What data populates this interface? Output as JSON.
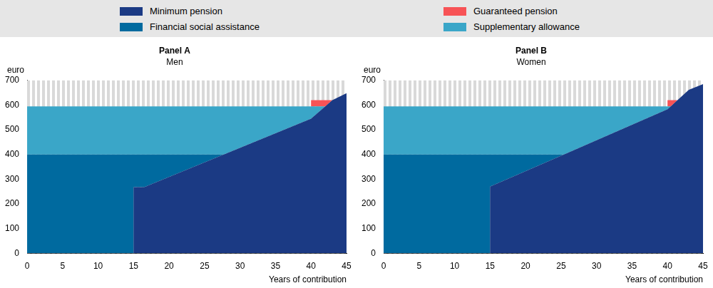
{
  "chart_data": [
    {
      "type": "area",
      "title": "Panel A",
      "subtitle": "Men",
      "x_label": "Years of contribution",
      "y_label": "euro",
      "x": [
        0,
        15,
        15,
        16.5,
        27.7,
        40,
        40,
        42,
        43,
        45
      ],
      "series": [
        {
          "name": "Minimum pension",
          "color": "#1b3a84",
          "values": [
            0,
            0,
            268,
            268,
            400,
            545,
            545,
            595,
            620,
            648
          ]
        },
        {
          "name": "Financial social assistance",
          "color": "#006a9f",
          "values": [
            400,
            400,
            132,
            132,
            0,
            0,
            0,
            0,
            0,
            0
          ]
        },
        {
          "name": "Supplementary allowance",
          "color": "#3aa6c8",
          "values": [
            195,
            195,
            195,
            195,
            195,
            50,
            50,
            0,
            0,
            0
          ]
        },
        {
          "name": "Guaranteed pension",
          "color": "#f75356",
          "values": [
            0,
            0,
            0,
            0,
            0,
            0,
            25,
            25,
            0,
            0
          ]
        }
      ],
      "xlim": [
        0,
        45
      ],
      "xticks": [
        0,
        5,
        10,
        15,
        20,
        25,
        30,
        35,
        40,
        45
      ],
      "ylim": [
        0,
        700
      ],
      "yticks": [
        0,
        100,
        200,
        300,
        400,
        500,
        600,
        700
      ],
      "stacked": true,
      "grid": false,
      "legend": "top"
    },
    {
      "type": "area",
      "title": "Panel B",
      "subtitle": "Women",
      "x_label": "Years of contribution",
      "y_label": "euro",
      "x": [
        0,
        15,
        15,
        25.4,
        40,
        40,
        40.45,
        41.4,
        43,
        45
      ],
      "series": [
        {
          "name": "Minimum pension",
          "color": "#1b3a84",
          "values": [
            0,
            0,
            270,
            400,
            583,
            583,
            595,
            620,
            662,
            685
          ]
        },
        {
          "name": "Financial social assistance",
          "color": "#006a9f",
          "values": [
            400,
            400,
            130,
            0,
            0,
            0,
            0,
            0,
            0,
            0
          ]
        },
        {
          "name": "Supplementary allowance",
          "color": "#3aa6c8",
          "values": [
            195,
            195,
            195,
            195,
            12,
            12,
            0,
            0,
            0,
            0
          ]
        },
        {
          "name": "Guaranteed pension",
          "color": "#f75356",
          "values": [
            0,
            0,
            0,
            0,
            0,
            25,
            25,
            0,
            0,
            0
          ]
        }
      ],
      "xlim": [
        0,
        45
      ],
      "xticks": [
        0,
        5,
        10,
        15,
        20,
        25,
        30,
        35,
        40,
        45
      ],
      "ylim": [
        0,
        700
      ],
      "yticks": [
        0,
        100,
        200,
        300,
        400,
        500,
        600,
        700
      ],
      "stacked": true,
      "grid": false,
      "legend": "top"
    }
  ]
}
